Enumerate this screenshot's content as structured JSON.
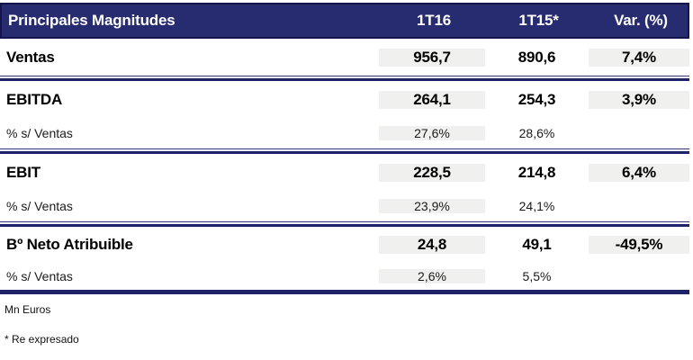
{
  "chart_data": {
    "type": "table",
    "title": "Principales Magnitudes",
    "columns": [
      "Principales Magnitudes",
      "1T16",
      "1T15*",
      "Var. (%)"
    ],
    "sections": [
      {
        "rows": [
          {
            "label": "Ventas",
            "v2016": "956,7",
            "v2015": "890,6",
            "var": "7,4%",
            "emphasis": true
          }
        ]
      },
      {
        "rows": [
          {
            "label": "EBITDA",
            "v2016": "264,1",
            "v2015": "254,3",
            "var": "3,9%",
            "emphasis": true
          },
          {
            "label": "% s/ Ventas",
            "v2016": "27,6%",
            "v2015": "28,6%",
            "var": "",
            "emphasis": false
          }
        ]
      },
      {
        "rows": [
          {
            "label": "EBIT",
            "v2016": "228,5",
            "v2015": "214,8",
            "var": "6,4%",
            "emphasis": true
          },
          {
            "label": "% s/ Ventas",
            "v2016": "23,9%",
            "v2015": "24,1%",
            "var": "",
            "emphasis": false
          }
        ]
      },
      {
        "rows": [
          {
            "label": "Bº Neto Atribuible",
            "v2016": "24,8",
            "v2015": "49,1",
            "var": "-49,5%",
            "emphasis": true
          },
          {
            "label": "% s/ Ventas",
            "v2016": "2,6%",
            "v2015": "5,5%",
            "var": "",
            "emphasis": false
          }
        ]
      }
    ],
    "footnotes": [
      "Mn Euros",
      "* Re expresado"
    ],
    "units": "Mn Euros",
    "layout": {
      "shaded_columns": [
        "1T16",
        "Var. (%)"
      ],
      "legend_position": "none",
      "grid": "section-rules"
    }
  },
  "colors": {
    "header_bg": "#272b6f",
    "header_border": "#12144a",
    "header_text": "#ffffff",
    "rule_navy": "#1e2268",
    "cell_shade": "#f0f0ee",
    "text": "#000000"
  }
}
